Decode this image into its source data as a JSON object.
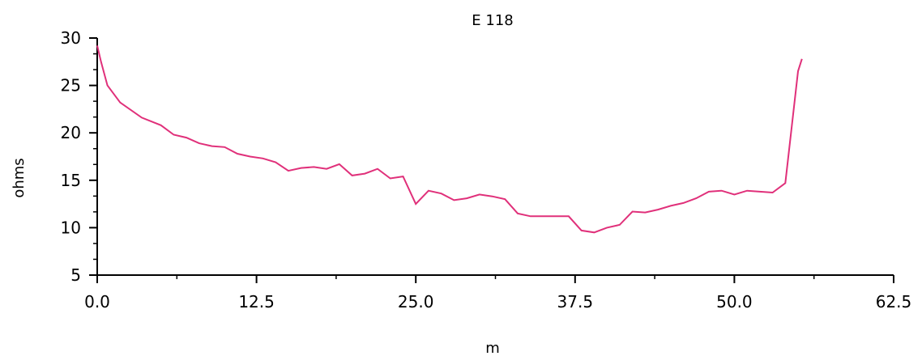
{
  "chart_data": {
    "type": "line",
    "title": "E 118",
    "xlabel": "m",
    "ylabel": "ohms",
    "xlim": [
      0,
      62.5
    ],
    "ylim": [
      5,
      30
    ],
    "x_ticks": [
      "0.0",
      "12.5",
      "25.0",
      "37.5",
      "50.0",
      "62.5"
    ],
    "y_ticks": [
      "5",
      "10",
      "15",
      "20",
      "25",
      "30"
    ],
    "grid": false,
    "series": [
      {
        "color": "#e0307a",
        "points": [
          [
            0.0,
            29.2
          ],
          [
            0.3,
            27.5
          ],
          [
            0.8,
            25.0
          ],
          [
            1.8,
            23.2
          ],
          [
            3.5,
            21.6
          ],
          [
            5.0,
            20.8
          ],
          [
            6.0,
            19.8
          ],
          [
            7.0,
            19.5
          ],
          [
            8.0,
            18.9
          ],
          [
            9.0,
            18.6
          ],
          [
            10.0,
            18.5
          ],
          [
            11.0,
            17.8
          ],
          [
            12.0,
            17.5
          ],
          [
            13.0,
            17.3
          ],
          [
            14.0,
            16.9
          ],
          [
            15.0,
            16.0
          ],
          [
            16.0,
            16.3
          ],
          [
            17.0,
            16.4
          ],
          [
            18.0,
            16.2
          ],
          [
            19.0,
            16.7
          ],
          [
            20.0,
            15.5
          ],
          [
            21.0,
            15.7
          ],
          [
            22.0,
            16.2
          ],
          [
            23.0,
            15.2
          ],
          [
            24.0,
            15.4
          ],
          [
            25.0,
            12.5
          ],
          [
            26.0,
            13.9
          ],
          [
            27.0,
            13.6
          ],
          [
            28.0,
            12.9
          ],
          [
            29.0,
            13.1
          ],
          [
            30.0,
            13.5
          ],
          [
            31.0,
            13.3
          ],
          [
            32.0,
            13.0
          ],
          [
            33.0,
            11.5
          ],
          [
            34.0,
            11.2
          ],
          [
            35.0,
            11.2
          ],
          [
            36.0,
            11.2
          ],
          [
            37.0,
            11.2
          ],
          [
            38.0,
            9.7
          ],
          [
            39.0,
            9.5
          ],
          [
            40.0,
            10.0
          ],
          [
            41.0,
            10.3
          ],
          [
            42.0,
            11.7
          ],
          [
            43.0,
            11.6
          ],
          [
            44.0,
            11.9
          ],
          [
            45.0,
            12.3
          ],
          [
            46.0,
            12.6
          ],
          [
            47.0,
            13.1
          ],
          [
            48.0,
            13.8
          ],
          [
            49.0,
            13.9
          ],
          [
            50.0,
            13.5
          ],
          [
            51.0,
            13.9
          ],
          [
            52.0,
            13.8
          ],
          [
            53.0,
            13.7
          ],
          [
            54.0,
            14.7
          ],
          [
            55.0,
            26.5
          ],
          [
            55.3,
            27.8
          ]
        ]
      }
    ]
  }
}
